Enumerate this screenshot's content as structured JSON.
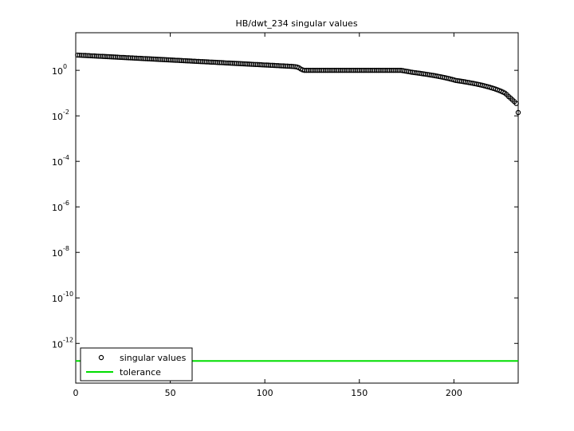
{
  "chart_data": {
    "type": "scatter",
    "title": "HB/dwt_234 singular values",
    "log_y": true,
    "legend_loc": "lower left",
    "xlim": [
      0,
      234
    ],
    "xticks": [
      0,
      50,
      100,
      150,
      200
    ],
    "ylim": [
      1.8e-14,
      45
    ],
    "yticks": [
      {
        "value": 1e-12,
        "label": "10",
        "exponent": "-12"
      },
      {
        "value": 1e-10,
        "label": "10",
        "exponent": "-10"
      },
      {
        "value": 1e-08,
        "label": "10",
        "exponent": "-8"
      },
      {
        "value": 1e-06,
        "label": "10",
        "exponent": "-6"
      },
      {
        "value": 0.0001,
        "label": "10",
        "exponent": "-4"
      },
      {
        "value": 0.01,
        "label": "10",
        "exponent": "-2"
      },
      {
        "value": 1,
        "label": "10",
        "exponent": "0"
      }
    ],
    "series": [
      {
        "name": "singular values",
        "color": "#000000",
        "marker": "circle",
        "x": [
          1,
          2,
          3,
          4,
          5,
          6,
          7,
          8,
          9,
          10,
          11,
          12,
          13,
          14,
          15,
          16,
          17,
          18,
          19,
          20,
          21,
          22,
          23,
          24,
          25,
          26,
          27,
          28,
          29,
          30,
          31,
          32,
          33,
          34,
          35,
          36,
          37,
          38,
          39,
          40,
          41,
          42,
          43,
          44,
          45,
          46,
          47,
          48,
          49,
          50,
          51,
          52,
          53,
          54,
          55,
          56,
          57,
          58,
          59,
          60,
          61,
          62,
          63,
          64,
          65,
          66,
          67,
          68,
          69,
          70,
          71,
          72,
          73,
          74,
          75,
          76,
          77,
          78,
          79,
          80,
          81,
          82,
          83,
          84,
          85,
          86,
          87,
          88,
          89,
          90,
          91,
          92,
          93,
          94,
          95,
          96,
          97,
          98,
          99,
          100,
          101,
          102,
          103,
          104,
          105,
          106,
          107,
          108,
          109,
          110,
          111,
          112,
          113,
          114,
          115,
          116,
          117,
          118,
          119,
          120,
          121,
          122,
          123,
          124,
          125,
          126,
          127,
          128,
          129,
          130,
          131,
          132,
          133,
          134,
          135,
          136,
          137,
          138,
          139,
          140,
          141,
          142,
          143,
          144,
          145,
          146,
          147,
          148,
          149,
          150,
          151,
          152,
          153,
          154,
          155,
          156,
          157,
          158,
          159,
          160,
          161,
          162,
          163,
          164,
          165,
          166,
          167,
          168,
          169,
          170,
          171,
          172,
          173,
          174,
          175,
          176,
          177,
          178,
          179,
          180,
          181,
          182,
          183,
          184,
          185,
          186,
          187,
          188,
          189,
          190,
          191,
          192,
          193,
          194,
          195,
          196,
          197,
          198,
          199,
          200,
          201,
          202,
          203,
          204,
          205,
          206,
          207,
          208,
          209,
          210,
          211,
          212,
          213,
          214,
          215,
          216,
          217,
          218,
          219,
          220,
          221,
          222,
          223,
          224,
          225,
          226,
          227,
          228,
          229,
          230,
          231,
          232,
          233,
          234
        ],
        "values": [
          4.68,
          4.63,
          4.59,
          4.54,
          4.5,
          4.45,
          4.41,
          4.36,
          4.32,
          4.28,
          4.23,
          4.19,
          4.15,
          4.11,
          4.07,
          4.03,
          3.99,
          3.95,
          3.91,
          3.87,
          3.83,
          3.79,
          3.75,
          3.71,
          3.68,
          3.64,
          3.6,
          3.57,
          3.53,
          3.5,
          3.46,
          3.43,
          3.39,
          3.36,
          3.33,
          3.29,
          3.26,
          3.23,
          3.2,
          3.16,
          3.13,
          3.1,
          3.07,
          3.04,
          3.01,
          2.98,
          2.95,
          2.92,
          2.89,
          2.86,
          2.83,
          2.8,
          2.77,
          2.75,
          2.72,
          2.69,
          2.66,
          2.64,
          2.61,
          2.59,
          2.56,
          2.53,
          2.51,
          2.48,
          2.46,
          2.43,
          2.41,
          2.39,
          2.36,
          2.34,
          2.31,
          2.29,
          2.27,
          2.25,
          2.22,
          2.2,
          2.18,
          2.16,
          2.13,
          2.11,
          2.09,
          2.07,
          2.05,
          2.03,
          2.01,
          1.99,
          1.97,
          1.95,
          1.93,
          1.91,
          1.89,
          1.87,
          1.85,
          1.83,
          1.81,
          1.8,
          1.78,
          1.76,
          1.74,
          1.72,
          1.71,
          1.69,
          1.67,
          1.66,
          1.64,
          1.62,
          1.61,
          1.59,
          1.57,
          1.56,
          1.54,
          1.53,
          1.51,
          1.5,
          1.48,
          1.45,
          1.4,
          1.3,
          1.15,
          1.05,
          1,
          1,
          1,
          1,
          1,
          1,
          1,
          1,
          1,
          1,
          1,
          1,
          1,
          1,
          1,
          1,
          1,
          1,
          1,
          1,
          1,
          1,
          1,
          1,
          1,
          1,
          1,
          1,
          1,
          1,
          1,
          1,
          1,
          1,
          1,
          1,
          1,
          1,
          1,
          1,
          1,
          1,
          1,
          1,
          1,
          1,
          1,
          1,
          1,
          1,
          1,
          1,
          0.97,
          0.94,
          0.91,
          0.88,
          0.85,
          0.82,
          0.8,
          0.78,
          0.76,
          0.74,
          0.72,
          0.7,
          0.68,
          0.66,
          0.64,
          0.62,
          0.6,
          0.58,
          0.56,
          0.54,
          0.52,
          0.5,
          0.48,
          0.46,
          0.44,
          0.42,
          0.4,
          0.38,
          0.36,
          0.35,
          0.34,
          0.33,
          0.32,
          0.31,
          0.3,
          0.29,
          0.28,
          0.27,
          0.26,
          0.25,
          0.24,
          0.23,
          0.22,
          0.21,
          0.2,
          0.19,
          0.18,
          0.17,
          0.16,
          0.15,
          0.14,
          0.13,
          0.12,
          0.11,
          0.1,
          0.085,
          0.07,
          0.06,
          0.05,
          0.042,
          0.035,
          0.014
        ]
      },
      {
        "name": "tolerance",
        "color": "#00dd00",
        "marker": "line",
        "x": [
          0,
          234
        ],
        "values": [
          1.7e-13,
          1.7e-13
        ]
      }
    ]
  }
}
